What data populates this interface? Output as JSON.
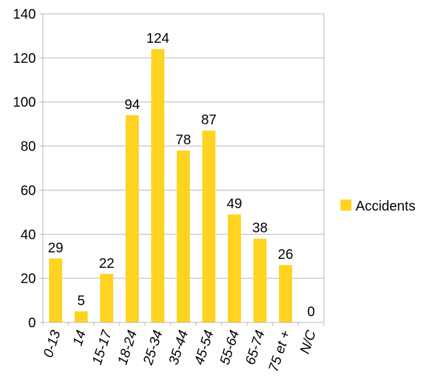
{
  "chart_data": {
    "type": "bar",
    "categories": [
      "0-13",
      "14",
      "15-17",
      "18-24",
      "25-34",
      "35-44",
      "45-54",
      "55-64",
      "65-74",
      "75 et +",
      "N/C"
    ],
    "series": [
      {
        "name": "Accidents",
        "values": [
          29,
          5,
          22,
          94,
          124,
          78,
          87,
          49,
          38,
          26,
          0
        ],
        "color": "#FFD320"
      }
    ],
    "ylim": [
      0,
      140
    ],
    "yticks": [
      0,
      20,
      40,
      60,
      80,
      100,
      120,
      140
    ],
    "grid": true,
    "gridColor": "#b3b3b3",
    "legend": {
      "position": "right"
    }
  }
}
